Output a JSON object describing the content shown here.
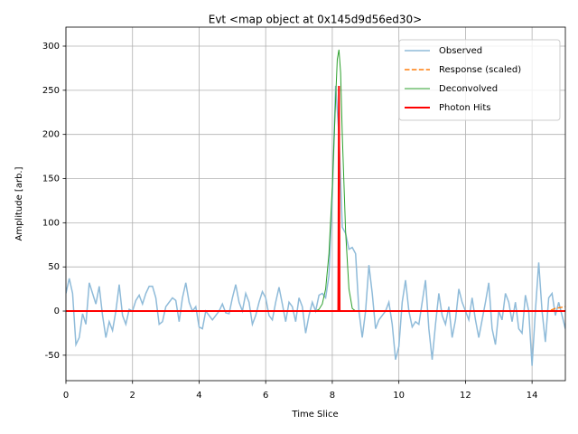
{
  "chart_data": {
    "type": "line",
    "title": "Evt <map object at 0x145d9d56ed30>",
    "x_label": "Time Slice",
    "y_label": "Amplitude [arb.]",
    "xlim": [
      0,
      15
    ],
    "ylim": [
      -78.8,
      321.5
    ],
    "xticks": [
      0,
      2,
      4,
      6,
      8,
      10,
      12,
      14
    ],
    "yticks": [
      -50,
      0,
      50,
      100,
      150,
      200,
      250,
      300
    ],
    "grid": true,
    "legend": "upper right",
    "series": [
      {
        "name": "Observed",
        "color": "#8fbbd9",
        "linestyle": "solid",
        "x": [
          0,
          0.1,
          0.2,
          0.3,
          0.4,
          0.5,
          0.6,
          0.7,
          0.8,
          0.9,
          1.0,
          1.1,
          1.2,
          1.3,
          1.4,
          1.5,
          1.6,
          1.7,
          1.8,
          1.9,
          2.0,
          2.1,
          2.2,
          2.3,
          2.4,
          2.5,
          2.6,
          2.7,
          2.8,
          2.9,
          3.0,
          3.1,
          3.2,
          3.3,
          3.4,
          3.5,
          3.6,
          3.7,
          3.8,
          3.9,
          4.0,
          4.1,
          4.2,
          4.3,
          4.4,
          4.5,
          4.6,
          4.7,
          4.8,
          4.9,
          5.0,
          5.1,
          5.2,
          5.3,
          5.4,
          5.5,
          5.6,
          5.7,
          5.8,
          5.9,
          6.0,
          6.1,
          6.2,
          6.3,
          6.4,
          6.5,
          6.6,
          6.7,
          6.8,
          6.9,
          7.0,
          7.1,
          7.2,
          7.3,
          7.4,
          7.5,
          7.6,
          7.7,
          7.8,
          7.9,
          8.0,
          8.1,
          8.2,
          8.3,
          8.4,
          8.5,
          8.6,
          8.7,
          8.8,
          8.9,
          9.0,
          9.1,
          9.2,
          9.3,
          9.4,
          9.5,
          9.6,
          9.7,
          9.8,
          9.9,
          10.0,
          10.1,
          10.2,
          10.3,
          10.4,
          10.5,
          10.6,
          10.7,
          10.8,
          10.9,
          11.0,
          11.1,
          11.2,
          11.3,
          11.4,
          11.5,
          11.6,
          11.7,
          11.8,
          11.9,
          12.0,
          12.1,
          12.2,
          12.3,
          12.4,
          12.5,
          12.6,
          12.7,
          12.8,
          12.9,
          13.0,
          13.1,
          13.2,
          13.3,
          13.4,
          13.5,
          13.6,
          13.7,
          13.8,
          13.9,
          14.0,
          14.1,
          14.2,
          14.3,
          14.4,
          14.5,
          14.6,
          14.7,
          14.8,
          14.9,
          15.0
        ],
        "values": [
          20,
          37,
          20,
          -38,
          -30,
          -3,
          -15,
          32,
          20,
          8,
          28,
          -5,
          -30,
          -12,
          -22,
          0,
          30,
          -5,
          -15,
          2,
          0,
          12,
          18,
          8,
          20,
          28,
          28,
          15,
          -15,
          -12,
          5,
          10,
          15,
          12,
          -12,
          15,
          32,
          10,
          0,
          5,
          -18,
          -20,
          0,
          -5,
          -10,
          -5,
          0,
          8,
          -2,
          -3,
          15,
          30,
          10,
          0,
          20,
          10,
          -15,
          -5,
          10,
          22,
          15,
          -5,
          -10,
          10,
          27,
          8,
          -12,
          10,
          5,
          -12,
          15,
          5,
          -25,
          -5,
          10,
          0,
          18,
          20,
          15,
          40,
          130,
          255,
          200,
          95,
          88,
          70,
          72,
          65,
          0,
          -30,
          0,
          52,
          20,
          -20,
          -10,
          -5,
          0,
          10,
          -15,
          -55,
          -40,
          10,
          35,
          0,
          -18,
          -12,
          -15,
          10,
          35,
          -20,
          -55,
          -15,
          20,
          -5,
          -15,
          5,
          -30,
          -10,
          25,
          10,
          0,
          -10,
          15,
          -10,
          -30,
          -10,
          10,
          32,
          -20,
          -38,
          0,
          -10,
          20,
          10,
          -12,
          10,
          -20,
          -25,
          18,
          0,
          -62,
          0,
          55,
          0,
          -35,
          15,
          20,
          -5,
          10,
          -5,
          -20
        ]
      },
      {
        "name": "Response (scaled)",
        "color": "#ff7f0e",
        "linestyle": "dashed",
        "x": [
          0,
          14.5,
          14.7,
          15
        ],
        "values": [
          0,
          0,
          3,
          5
        ]
      },
      {
        "name": "Deconvolved",
        "color": "#2ca02c",
        "linestyle": "solid",
        "x": [
          0,
          7.5,
          7.6,
          7.7,
          7.8,
          7.9,
          8.0,
          8.1,
          8.15,
          8.2,
          8.25,
          8.3,
          8.4,
          8.5,
          8.6,
          8.7,
          15
        ],
        "values": [
          0,
          0,
          2,
          8,
          25,
          65,
          140,
          240,
          285,
          296,
          270,
          200,
          90,
          25,
          3,
          0,
          0
        ]
      },
      {
        "name": "Photon Hits",
        "color": "#ff0000",
        "linestyle": "solid",
        "x": [
          0,
          8.18,
          8.2,
          8.22,
          15
        ],
        "values": [
          0,
          0,
          255,
          0,
          0
        ]
      }
    ]
  }
}
